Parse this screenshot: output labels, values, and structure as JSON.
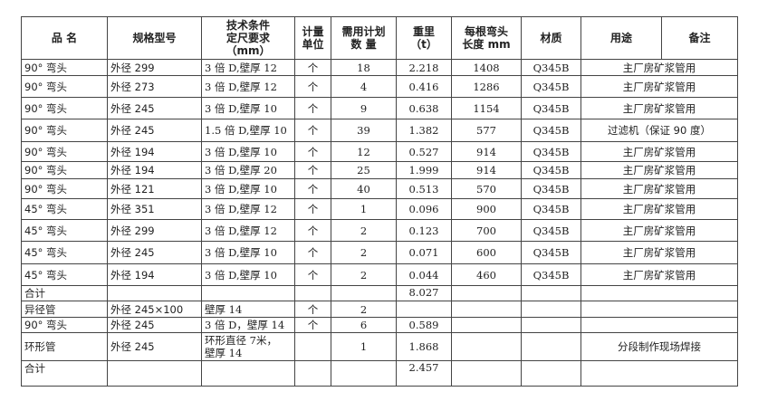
{
  "headers": [
    "品 名",
    "规格型号",
    "技术条件\n定尺要求\n（mm）",
    "计量\n单位",
    "需用计划\n数  量",
    "重里\n（t）",
    "每根弯头\n长度 mm",
    "材质",
    "用途",
    "备注"
  ],
  "rows": [
    [
      "90° 弯头",
      "外径 299",
      "3 倍 D,壁厚 12",
      "个",
      "18",
      "2.218",
      "1408",
      "Q345B",
      "主厂房矿浆管用"
    ],
    [
      "90° 弯头",
      "外径 273",
      "3 倍 D,壁厚 12",
      "个",
      "4",
      "0.416",
      "1286",
      "Q345B",
      "主厂房矿浆管用"
    ],
    [
      "90° 弯头",
      "外径 245",
      "3 倍 D,壁厚 10",
      "个",
      "9",
      "0.638",
      "1154",
      "Q345B",
      "主厂房矿浆管用"
    ],
    [
      "90° 弯头",
      "外径 245",
      "1.5 倍 D,壁厚 10",
      "个",
      "39",
      "1.382",
      "577",
      "Q345B",
      "过滤机（保证 90 度）"
    ],
    [
      "90° 弯头",
      "外径 194",
      "3 倍 D,壁厚 10",
      "个",
      "12",
      "0.527",
      "914",
      "Q345B",
      "主厂房矿浆管用"
    ],
    [
      "90° 弯头",
      "外径 194",
      "3 倍 D,壁厚 20",
      "个",
      "25",
      "1.999",
      "914",
      "Q345B",
      "主厂房矿浆管用"
    ],
    [
      "90° 弯头",
      "外径 121",
      "3 倍 D,壁厚 10",
      "个",
      "40",
      "0.513",
      "570",
      "Q345B",
      "主厂房矿浆管用"
    ],
    [
      "45° 弯头",
      "外径 351",
      "3 倍 D,壁厚 12",
      "个",
      "1",
      "0.096",
      "900",
      "Q345B",
      "主厂房矿浆管用"
    ],
    [
      "45° 弯头",
      "外径 299",
      "3 倍 D,壁厚 12",
      "个",
      "2",
      "0.123",
      "700",
      "Q345B",
      "主厂房矿浆管用"
    ],
    [
      "45° 弯头",
      "外径 245",
      "3 倍 D,壁厚 10",
      "个",
      "2",
      "0.071",
      "600",
      "Q345B",
      "主厂房矿浆管用"
    ],
    [
      "45° 弯头",
      "外径 194",
      "3 倍 D,壁厚 10",
      "个",
      "2",
      "0.044",
      "460",
      "Q345B",
      "主厂房矿浆管用"
    ],
    [
      "合计",
      "",
      "",
      "",
      "",
      "8.027",
      "",
      "",
      ""
    ],
    [
      "异径管",
      "外径 245×100",
      "壁厚 14",
      "个",
      "2",
      "",
      "",
      "",
      ""
    ],
    [
      "90° 弯头",
      "外径 245",
      "3 倍 D，壁厚 14",
      "个",
      "6",
      "0.589",
      "",
      "",
      ""
    ],
    [
      "环形管",
      "外径 245",
      "环形直径 7米，\n壁厚 14",
      "",
      "1",
      "1.868",
      "",
      "",
      "分段制作现场焊接"
    ],
    [
      "合计",
      "",
      "",
      "",
      "",
      "2.457",
      "",
      "",
      ""
    ]
  ]
}
